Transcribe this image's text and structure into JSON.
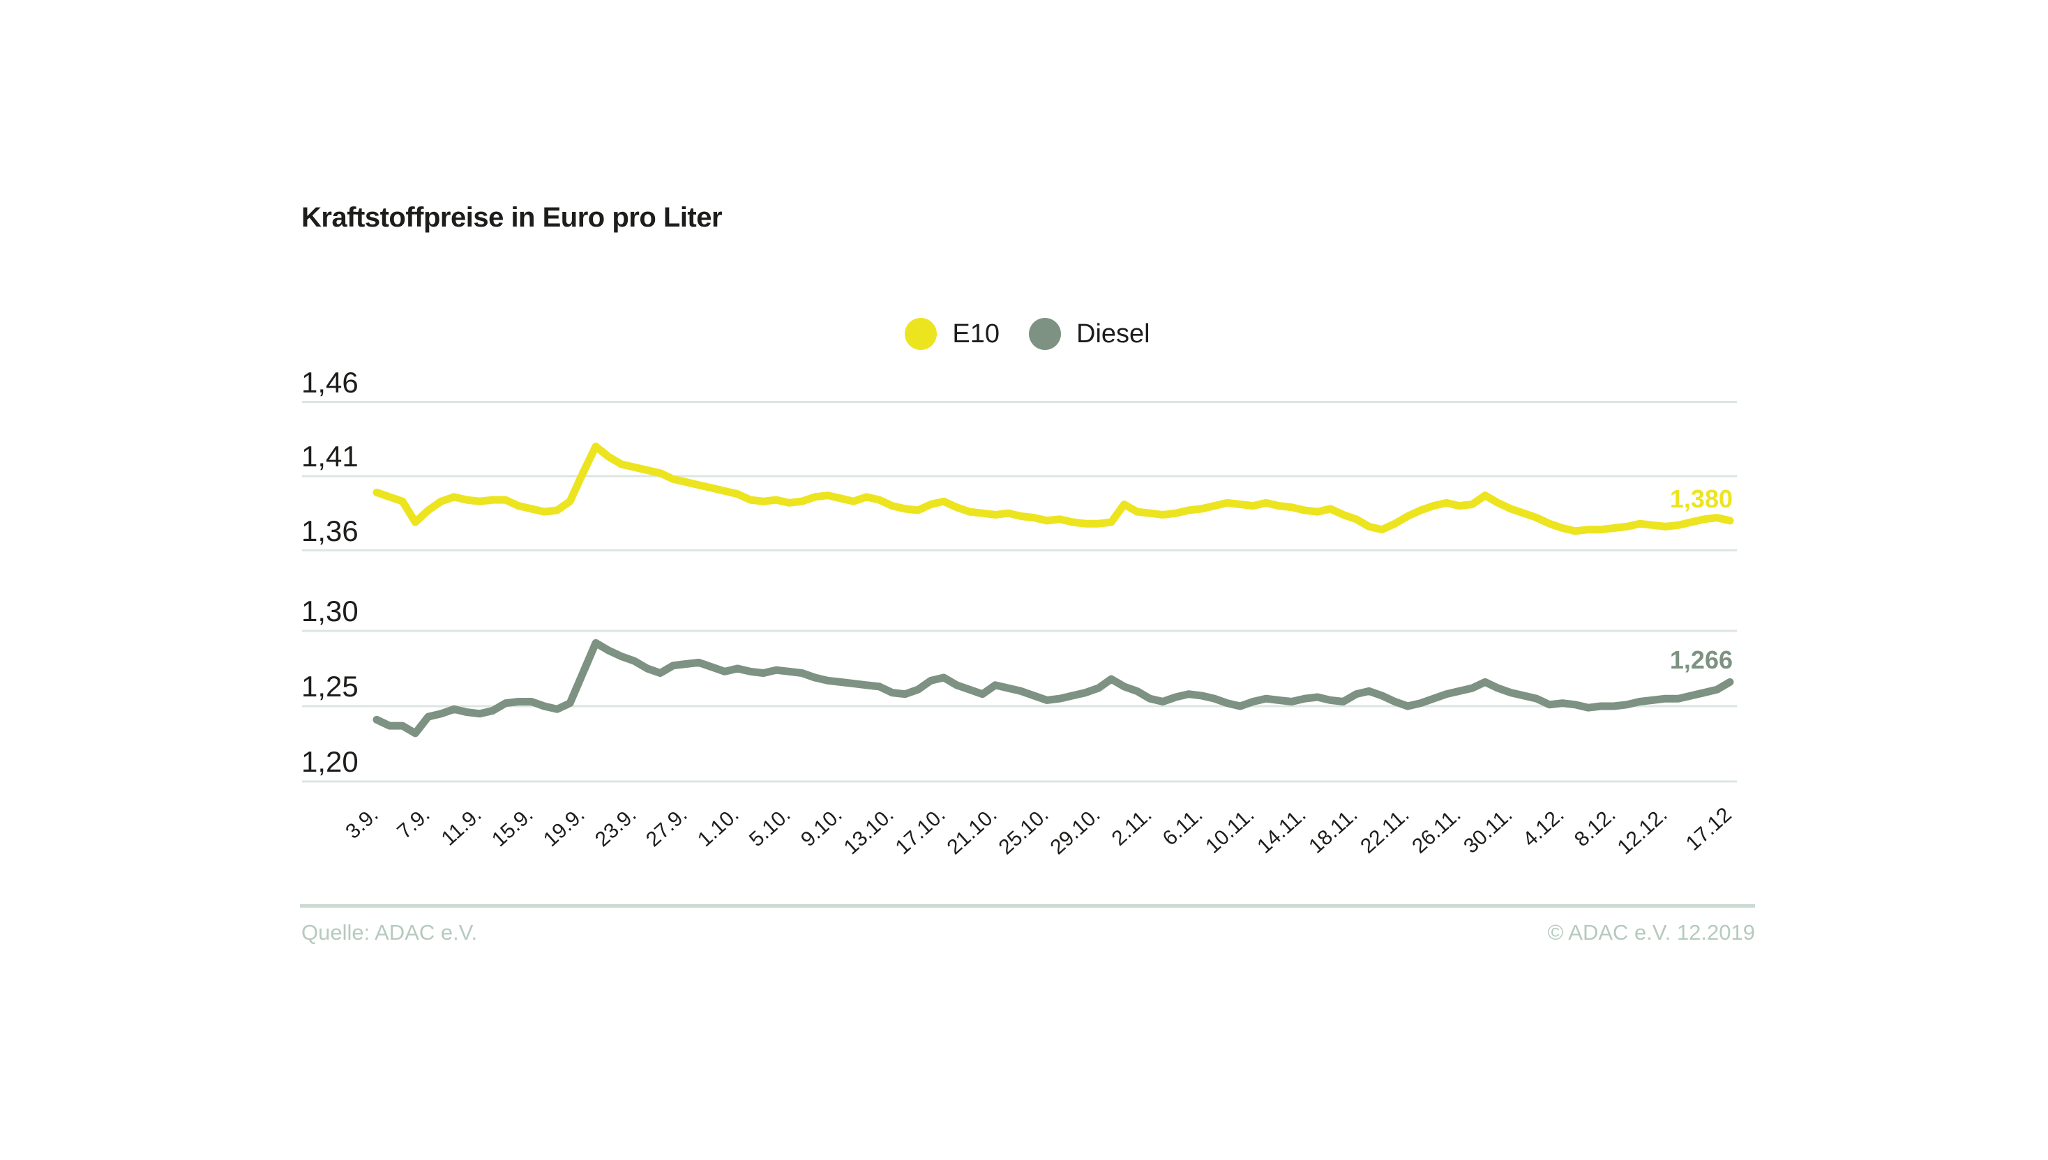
{
  "title": "Kraftstoffpreise in Euro pro Liter",
  "legend": [
    {
      "label": "E10",
      "color": "#ede420"
    },
    {
      "label": "Diesel",
      "color": "#7d9282"
    }
  ],
  "footer": {
    "source": "Quelle: ADAC e.V.",
    "copyright": "© ADAC e.V. 12.2019"
  },
  "colors": {
    "text": "#1d1d1b",
    "grid": "#dce6e2",
    "divider": "#ccdad2",
    "footer_text": "#b6cabe",
    "e10": "#ede420",
    "diesel": "#7d9282"
  },
  "chart_data": {
    "type": "line",
    "title": "Kraftstoffpreise in Euro pro Liter",
    "grid": true,
    "legend_position": "top-center",
    "x_tick_labels": [
      "3.9.",
      "7.9.",
      "11.9.",
      "15.9.",
      "19.9.",
      "23.9.",
      "27.9.",
      "1.10.",
      "5.10.",
      "9.10.",
      "13.10.",
      "17.10.",
      "21.10.",
      "25.10.",
      "29.10.",
      "2.11.",
      "6.11.",
      "10.11.",
      "14.11.",
      "18.11.",
      "22.11.",
      "26.11.",
      "30.11.",
      "4.12.",
      "8.12.",
      "12.12.",
      "17.12"
    ],
    "y_axis": {
      "broken_axis": true,
      "top": {
        "labels": [
          "1,46",
          "1,41",
          "1,36"
        ],
        "values": [
          1.46,
          1.41,
          1.36
        ],
        "range": [
          1.36,
          1.46
        ]
      },
      "bottom": {
        "labels": [
          "1,30",
          "1,25",
          "1,20"
        ],
        "values": [
          1.3,
          1.25,
          1.2
        ],
        "range": [
          1.2,
          1.3
        ]
      }
    },
    "series": [
      {
        "name": "E10",
        "color": "#ede420",
        "section": "top",
        "end_label": "1,380",
        "end_value": 1.38,
        "values": [
          1.399,
          1.396,
          1.393,
          1.379,
          1.387,
          1.393,
          1.396,
          1.394,
          1.393,
          1.394,
          1.394,
          1.39,
          1.388,
          1.386,
          1.387,
          1.393,
          1.412,
          1.43,
          1.423,
          1.418,
          1.416,
          1.414,
          1.412,
          1.408,
          1.406,
          1.404,
          1.402,
          1.4,
          1.398,
          1.394,
          1.393,
          1.394,
          1.392,
          1.393,
          1.396,
          1.397,
          1.395,
          1.393,
          1.396,
          1.394,
          1.39,
          1.388,
          1.387,
          1.391,
          1.393,
          1.389,
          1.386,
          1.385,
          1.384,
          1.385,
          1.383,
          1.382,
          1.38,
          1.381,
          1.379,
          1.378,
          1.378,
          1.379,
          1.391,
          1.386,
          1.385,
          1.384,
          1.385,
          1.387,
          1.388,
          1.39,
          1.392,
          1.391,
          1.39,
          1.392,
          1.39,
          1.389,
          1.387,
          1.386,
          1.388,
          1.384,
          1.381,
          1.376,
          1.374,
          1.378,
          1.383,
          1.387,
          1.39,
          1.392,
          1.39,
          1.391,
          1.397,
          1.392,
          1.388,
          1.385,
          1.382,
          1.378,
          1.375,
          1.373,
          1.374,
          1.374,
          1.375,
          1.376,
          1.378,
          1.377,
          1.376,
          1.377,
          1.379,
          1.381,
          1.382,
          1.38
        ]
      },
      {
        "name": "Diesel",
        "color": "#7d9282",
        "section": "bottom",
        "end_label": "1,266",
        "end_value": 1.266,
        "values": [
          1.241,
          1.237,
          1.237,
          1.232,
          1.243,
          1.245,
          1.248,
          1.246,
          1.245,
          1.247,
          1.252,
          1.253,
          1.253,
          1.25,
          1.248,
          1.252,
          1.272,
          1.292,
          1.287,
          1.283,
          1.28,
          1.275,
          1.272,
          1.277,
          1.278,
          1.279,
          1.276,
          1.273,
          1.275,
          1.273,
          1.272,
          1.274,
          1.273,
          1.272,
          1.269,
          1.267,
          1.266,
          1.265,
          1.264,
          1.263,
          1.259,
          1.258,
          1.261,
          1.267,
          1.269,
          1.264,
          1.261,
          1.258,
          1.264,
          1.262,
          1.26,
          1.257,
          1.254,
          1.255,
          1.257,
          1.259,
          1.262,
          1.268,
          1.263,
          1.26,
          1.255,
          1.253,
          1.256,
          1.258,
          1.257,
          1.255,
          1.252,
          1.25,
          1.253,
          1.255,
          1.254,
          1.253,
          1.255,
          1.256,
          1.254,
          1.253,
          1.258,
          1.26,
          1.257,
          1.253,
          1.25,
          1.252,
          1.255,
          1.258,
          1.26,
          1.262,
          1.266,
          1.262,
          1.259,
          1.257,
          1.255,
          1.251,
          1.252,
          1.251,
          1.249,
          1.25,
          1.25,
          1.251,
          1.253,
          1.254,
          1.255,
          1.255,
          1.257,
          1.259,
          1.261,
          1.266
        ]
      }
    ]
  }
}
